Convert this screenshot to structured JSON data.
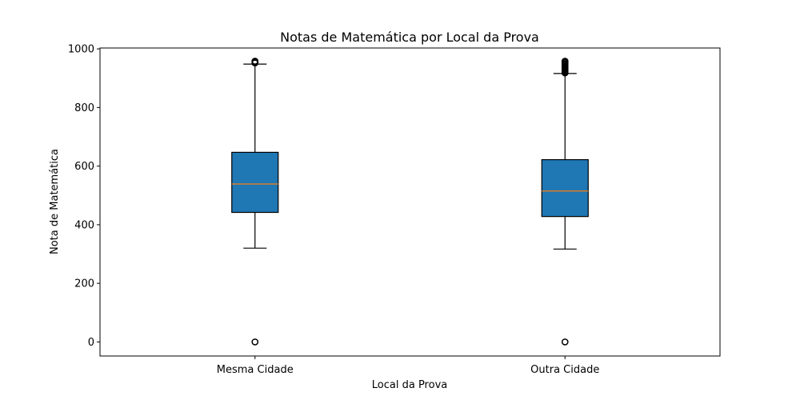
{
  "chart_data": {
    "type": "box",
    "title": "Notas de Matemática por Local da Prova",
    "xlabel": "Local da Prova",
    "ylabel": "Nota de Matemática",
    "categories": [
      "Mesma Cidade",
      "Outra Cidade"
    ],
    "ylim": [
      -48,
      1003
    ],
    "yticks": [
      0,
      200,
      400,
      600,
      800,
      1000
    ],
    "grid": false,
    "legend": "none",
    "box_color": "#1f77b4",
    "median_color": "#ff7f0e",
    "edge_color": "#000000",
    "boxes": [
      {
        "category": "Mesma Cidade",
        "whisker_low": 320,
        "q1": 442,
        "median": 539,
        "q3": 647,
        "whisker_high": 948,
        "outliers": [
          0,
          952,
          954,
          956,
          958
        ]
      },
      {
        "category": "Outra Cidade",
        "whisker_low": 317,
        "q1": 428,
        "median": 515,
        "q3": 622,
        "whisker_high": 916,
        "outliers": [
          0,
          918,
          922,
          926,
          930,
          934,
          938,
          942,
          946,
          950,
          954,
          958
        ]
      }
    ]
  }
}
